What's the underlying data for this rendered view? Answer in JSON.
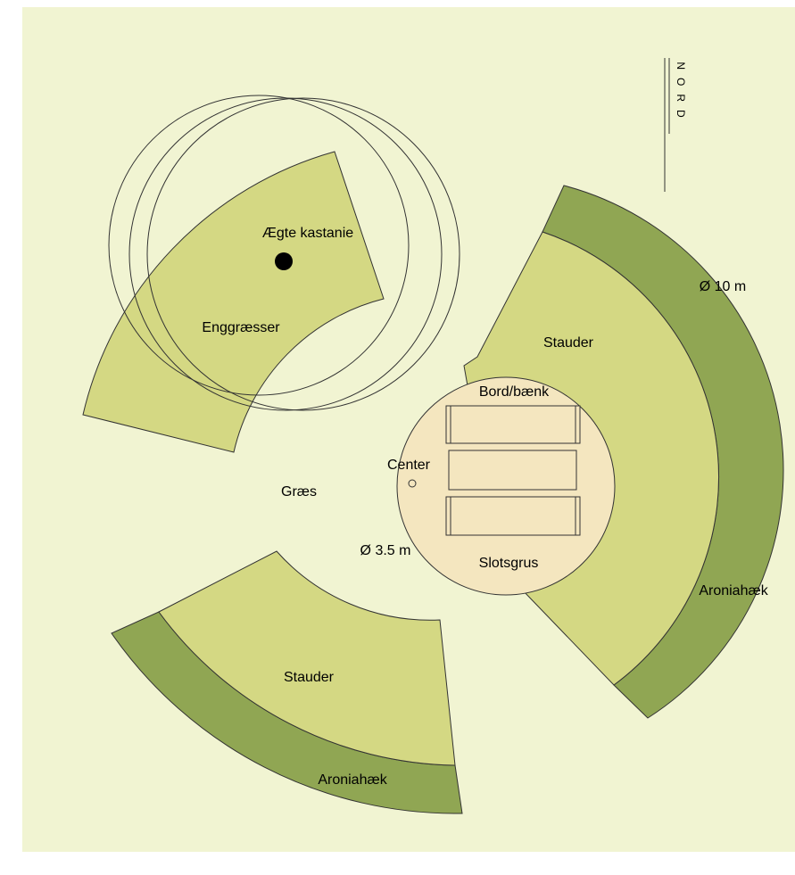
{
  "north": "NORD",
  "labels": [
    "Ægte kastanie",
    "Enggræsser",
    "Græs",
    "Ø 3.5 m",
    "Center",
    "Bord/bænk",
    "Slotsgrus",
    "Stauder",
    "Ø 10 m",
    "Aroniahæk",
    "Stauder",
    "Aroniahæk"
  ]
}
